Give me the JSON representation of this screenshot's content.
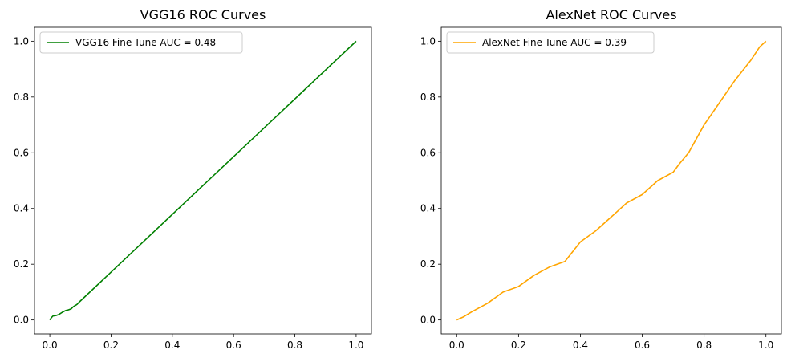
{
  "chart_data": [
    {
      "type": "line",
      "title": "VGG16 ROC Curves",
      "xlabel": "",
      "ylabel": "",
      "xlim": [
        -0.05,
        1.05
      ],
      "ylim": [
        -0.05,
        1.05
      ],
      "xticks": [
        0.0,
        0.2,
        0.4,
        0.6,
        0.8,
        1.0
      ],
      "yticks": [
        0.0,
        0.2,
        0.4,
        0.6,
        0.8,
        1.0
      ],
      "tick_labels_x": [
        "0.0",
        "0.2",
        "0.4",
        "0.6",
        "0.8",
        "1.0"
      ],
      "tick_labels_y": [
        "0.0",
        "0.2",
        "0.4",
        "0.6",
        "0.8",
        "1.0"
      ],
      "grid": false,
      "legend_location": "upper-left",
      "series": [
        {
          "name": "VGG16 Fine-Tune AUC = 0.48",
          "color": "#008000",
          "x": [
            0.0,
            0.005,
            0.01,
            0.02,
            0.03,
            0.04,
            0.05,
            0.055,
            0.06,
            0.07,
            0.075,
            0.08,
            0.085,
            0.09,
            0.095,
            1.0
          ],
          "y": [
            0.0,
            0.008,
            0.014,
            0.016,
            0.02,
            0.027,
            0.033,
            0.035,
            0.036,
            0.04,
            0.046,
            0.05,
            0.053,
            0.057,
            0.063,
            1.0
          ]
        }
      ]
    },
    {
      "type": "line",
      "title": "AlexNet ROC Curves",
      "xlabel": "",
      "ylabel": "",
      "xlim": [
        -0.05,
        1.05
      ],
      "ylim": [
        -0.05,
        1.05
      ],
      "xticks": [
        0.0,
        0.2,
        0.4,
        0.6,
        0.8,
        1.0
      ],
      "yticks": [
        0.0,
        0.2,
        0.4,
        0.6,
        0.8,
        1.0
      ],
      "tick_labels_x": [
        "0.0",
        "0.2",
        "0.4",
        "0.6",
        "0.8",
        "1.0"
      ],
      "tick_labels_y": [
        "0.0",
        "0.2",
        "0.4",
        "0.6",
        "0.8",
        "1.0"
      ],
      "grid": false,
      "legend_location": "upper-left",
      "series": [
        {
          "name": "AlexNet Fine-Tune AUC = 0.39",
          "color": "#ffa500",
          "x": [
            0.0,
            0.02,
            0.05,
            0.1,
            0.15,
            0.2,
            0.25,
            0.3,
            0.35,
            0.4,
            0.45,
            0.5,
            0.55,
            0.6,
            0.65,
            0.7,
            0.72,
            0.75,
            0.8,
            0.85,
            0.9,
            0.95,
            0.98,
            1.0
          ],
          "y": [
            0.0,
            0.01,
            0.03,
            0.06,
            0.1,
            0.12,
            0.16,
            0.19,
            0.21,
            0.28,
            0.32,
            0.37,
            0.42,
            0.45,
            0.5,
            0.53,
            0.56,
            0.6,
            0.7,
            0.78,
            0.86,
            0.93,
            0.98,
            1.0
          ]
        }
      ]
    }
  ]
}
